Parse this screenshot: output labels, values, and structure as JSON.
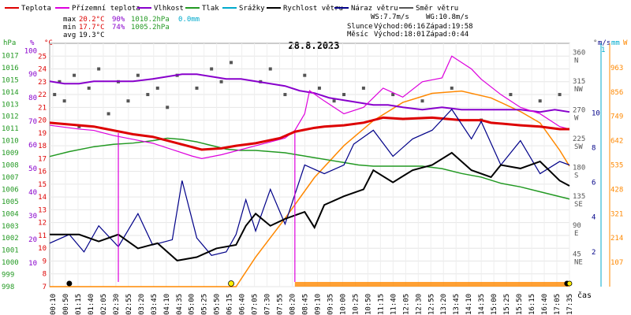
{
  "legend": [
    {
      "label": "Teplota",
      "color": "#dd0000"
    },
    {
      "label": "Přízemní teplota",
      "color": "#dd00dd"
    },
    {
      "label": "Vlhkost",
      "color": "#8800cc"
    },
    {
      "label": "Tlak",
      "color": "#229922"
    },
    {
      "label": "Srážky",
      "color": "#00aacc"
    },
    {
      "label": "Rychlost větru",
      "color": "#000000"
    },
    {
      "label": "Náraz větru",
      "color": "#000088"
    },
    {
      "label": "Směr větru",
      "color": "#555555"
    }
  ],
  "stats": {
    "max_label": "max",
    "max_temp": "20.2°C",
    "max_hum": "90%",
    "max_press": "1010.2hPa",
    "max_rain": "0.0mm",
    "min_label": "min",
    "min_temp": "17.7°C",
    "min_hum": "74%",
    "min_press": "1005.2hPa",
    "avg_label": "avg",
    "avg_temp": "19.3°C"
  },
  "wind": {
    "ws": "WS:7.7m/s",
    "wg": "WG:10.8m/s"
  },
  "sun": {
    "label": "Slunce",
    "rise": "Východ:06:16",
    "set": "Západ:19:58"
  },
  "moon": {
    "label": "Měsíc",
    "rise": "Východ:18:01",
    "set": "Západ:0:44"
  },
  "title": "28.8.2023",
  "axis_units": {
    "hpa": "hPa",
    "pct": "%",
    "degc": "°C",
    "deg": "°",
    "ms": "m/s",
    "mm": "mm",
    "w": "W",
    "time": "čas"
  },
  "colors": {
    "temp": "#dd0000",
    "ground": "#dd00dd",
    "hum": "#8800cc",
    "press": "#229922",
    "rain": "#00aacc",
    "speed": "#000000",
    "gust": "#000088",
    "dir": "#555555",
    "solar": "#ff8800"
  },
  "chart_data": {
    "type": "line",
    "title": "28.8.2023",
    "x_ticks": [
      "00:10",
      "00:50",
      "01:15",
      "01:40",
      "02:05",
      "02:30",
      "02:55",
      "03:20",
      "03:45",
      "04:10",
      "04:35",
      "05:00",
      "05:25",
      "05:50",
      "06:15",
      "06:40",
      "07:05",
      "07:30",
      "07:55",
      "08:20",
      "08:45",
      "09:10",
      "09:35",
      "10:00",
      "10:25",
      "10:50",
      "11:15",
      "11:40",
      "12:05",
      "12:30",
      "12:55",
      "13:20",
      "13:45",
      "14:10",
      "14:35",
      "15:00",
      "15:25",
      "15:50",
      "16:15",
      "16:40",
      "17:05",
      "17:35"
    ],
    "y_axes": {
      "pressure_hpa": {
        "range": [
          998,
          1018
        ],
        "ticks": [
          "998",
          "999",
          "1000",
          "1001",
          "1002",
          "1003",
          "1004",
          "1005",
          "1006",
          "1007",
          "1008",
          "1009",
          "1010",
          "1011",
          "1012",
          "1013",
          "1014",
          "1015",
          "1016",
          "1017"
        ]
      },
      "humidity_pct": {
        "range": [
          0,
          100
        ],
        "ticks": [
          "10",
          "20",
          "30",
          "40",
          "50",
          "60",
          "70",
          "80",
          "90",
          "100"
        ]
      },
      "temperature_c": {
        "range": [
          7,
          26
        ],
        "ticks": [
          "7",
          "8",
          "9",
          "10",
          "11",
          "12",
          "13",
          "14",
          "15",
          "16",
          "17",
          "18",
          "19",
          "20",
          "21",
          "22",
          "23",
          "24",
          "25"
        ]
      },
      "direction_deg": {
        "ticks": [
          [
            "360",
            "N"
          ],
          [
            "315",
            "NW"
          ],
          [
            "270",
            "W"
          ],
          [
            "225",
            "SW"
          ],
          [
            "180",
            "S"
          ],
          [
            "135",
            "SE"
          ],
          [
            "90",
            "E"
          ],
          [
            "45",
            "NE"
          ]
        ]
      },
      "wind_ms": {
        "range": [
          0,
          14
        ],
        "ticks": [
          "2",
          "4",
          "6",
          "8",
          "10"
        ]
      },
      "rain_mm": {
        "ticks": [
          "1"
        ]
      },
      "solar_w": {
        "range": [
          0,
          1070
        ],
        "ticks": [
          "107",
          "214",
          "321",
          "428",
          "535",
          "642",
          "749",
          "856",
          "963"
        ]
      }
    },
    "series": [
      {
        "name": "Teplota",
        "unit": "°C",
        "values": [
          [
            0,
            19.8
          ],
          [
            60,
            19.6
          ],
          [
            90,
            19.5
          ],
          [
            130,
            19.2
          ],
          [
            170,
            18.9
          ],
          [
            210,
            18.7
          ],
          [
            250,
            18.3
          ],
          [
            290,
            17.9
          ],
          [
            310,
            17.7
          ],
          [
            350,
            17.8
          ],
          [
            380,
            18.0
          ],
          [
            420,
            18.2
          ],
          [
            470,
            18.6
          ],
          [
            500,
            19.1
          ],
          [
            540,
            19.4
          ],
          [
            560,
            19.5
          ],
          [
            600,
            19.6
          ],
          [
            640,
            19.8
          ],
          [
            680,
            20.2
          ],
          [
            720,
            20.1
          ],
          [
            780,
            20.2
          ],
          [
            840,
            20.0
          ],
          [
            880,
            20.0
          ],
          [
            900,
            19.8
          ],
          [
            960,
            19.6
          ],
          [
            1000,
            19.5
          ],
          [
            1040,
            19.3
          ],
          [
            1060,
            19.3
          ]
        ]
      },
      {
        "name": "Přízemní teplota",
        "unit": "°C",
        "values": [
          [
            0,
            19.6
          ],
          [
            60,
            19.3
          ],
          [
            90,
            19.2
          ],
          [
            130,
            18.8
          ],
          [
            170,
            18.5
          ],
          [
            210,
            18.2
          ],
          [
            250,
            17.7
          ],
          [
            290,
            17.2
          ],
          [
            310,
            17.0
          ],
          [
            350,
            17.3
          ],
          [
            380,
            17.6
          ],
          [
            420,
            18.0
          ],
          [
            480,
            18.6
          ],
          [
            500,
            19.2
          ],
          [
            520,
            20.5
          ],
          [
            530,
            22.3
          ],
          [
            560,
            21.5
          ],
          [
            600,
            20.5
          ],
          [
            640,
            21.0
          ],
          [
            680,
            22.5
          ],
          [
            720,
            21.8
          ],
          [
            760,
            23.0
          ],
          [
            800,
            23.3
          ],
          [
            820,
            25.0
          ],
          [
            860,
            24.0
          ],
          [
            880,
            23.2
          ],
          [
            920,
            22.0
          ],
          [
            960,
            21.0
          ],
          [
            1000,
            20.5
          ],
          [
            1040,
            19.5
          ],
          [
            1060,
            19.3
          ]
        ]
      },
      {
        "name": "Vlhkost",
        "unit": "%",
        "values": [
          [
            0,
            87
          ],
          [
            30,
            86
          ],
          [
            60,
            86
          ],
          [
            90,
            87
          ],
          [
            130,
            87
          ],
          [
            170,
            87
          ],
          [
            210,
            88
          ],
          [
            240,
            89
          ],
          [
            270,
            90
          ],
          [
            300,
            90
          ],
          [
            330,
            89
          ],
          [
            360,
            88
          ],
          [
            390,
            88
          ],
          [
            420,
            87
          ],
          [
            450,
            86
          ],
          [
            480,
            85
          ],
          [
            510,
            83
          ],
          [
            540,
            82
          ],
          [
            570,
            80
          ],
          [
            600,
            79
          ],
          [
            630,
            78
          ],
          [
            660,
            77
          ],
          [
            690,
            77
          ],
          [
            720,
            76
          ],
          [
            760,
            75
          ],
          [
            800,
            76
          ],
          [
            840,
            75
          ],
          [
            880,
            75
          ],
          [
            920,
            75
          ],
          [
            960,
            75
          ],
          [
            1000,
            74
          ],
          [
            1030,
            75
          ],
          [
            1060,
            74
          ]
        ]
      },
      {
        "name": "Tlak",
        "unit": "hPa",
        "values": [
          [
            0,
            1008.7
          ],
          [
            40,
            1009.1
          ],
          [
            90,
            1009.5
          ],
          [
            130,
            1009.7
          ],
          [
            170,
            1009.8
          ],
          [
            210,
            1010.0
          ],
          [
            240,
            1010.2
          ],
          [
            270,
            1010.1
          ],
          [
            300,
            1009.9
          ],
          [
            330,
            1009.6
          ],
          [
            360,
            1009.3
          ],
          [
            390,
            1009.2
          ],
          [
            420,
            1009.2
          ],
          [
            450,
            1009.1
          ],
          [
            480,
            1009.0
          ],
          [
            510,
            1008.8
          ],
          [
            540,
            1008.6
          ],
          [
            570,
            1008.4
          ],
          [
            600,
            1008.2
          ],
          [
            630,
            1008.0
          ],
          [
            660,
            1007.9
          ],
          [
            690,
            1007.9
          ],
          [
            720,
            1007.9
          ],
          [
            760,
            1007.9
          ],
          [
            800,
            1007.7
          ],
          [
            840,
            1007.3
          ],
          [
            880,
            1007.0
          ],
          [
            920,
            1006.5
          ],
          [
            960,
            1006.2
          ],
          [
            1000,
            1005.8
          ],
          [
            1030,
            1005.5
          ],
          [
            1060,
            1005.2
          ]
        ]
      },
      {
        "name": "Rychlost větru",
        "unit": "m/s",
        "values": [
          [
            0,
            3.0
          ],
          [
            60,
            3.0
          ],
          [
            100,
            2.6
          ],
          [
            140,
            3.0
          ],
          [
            180,
            2.2
          ],
          [
            220,
            2.5
          ],
          [
            260,
            1.5
          ],
          [
            300,
            1.7
          ],
          [
            340,
            2.2
          ],
          [
            380,
            2.4
          ],
          [
            400,
            3.5
          ],
          [
            420,
            4.2
          ],
          [
            450,
            3.5
          ],
          [
            480,
            3.9
          ],
          [
            520,
            4.3
          ],
          [
            540,
            3.4
          ],
          [
            560,
            4.7
          ],
          [
            600,
            5.2
          ],
          [
            640,
            5.6
          ],
          [
            660,
            6.7
          ],
          [
            700,
            6.0
          ],
          [
            740,
            6.7
          ],
          [
            780,
            7.0
          ],
          [
            820,
            7.7
          ],
          [
            860,
            6.7
          ],
          [
            900,
            6.3
          ],
          [
            920,
            7.0
          ],
          [
            960,
            6.8
          ],
          [
            1000,
            7.2
          ],
          [
            1040,
            6.1
          ],
          [
            1060,
            5.8
          ]
        ]
      },
      {
        "name": "Náraz větru",
        "unit": "m/s",
        "values": [
          [
            0,
            2.5
          ],
          [
            40,
            3.0
          ],
          [
            70,
            2.0
          ],
          [
            100,
            3.5
          ],
          [
            140,
            2.3
          ],
          [
            180,
            4.2
          ],
          [
            210,
            2.4
          ],
          [
            250,
            2.7
          ],
          [
            270,
            6.1
          ],
          [
            300,
            2.8
          ],
          [
            330,
            1.8
          ],
          [
            360,
            2.0
          ],
          [
            380,
            3.0
          ],
          [
            400,
            5.0
          ],
          [
            420,
            3.2
          ],
          [
            450,
            5.6
          ],
          [
            480,
            3.6
          ],
          [
            520,
            7.0
          ],
          [
            560,
            6.5
          ],
          [
            600,
            7.0
          ],
          [
            620,
            8.2
          ],
          [
            660,
            9.0
          ],
          [
            700,
            7.5
          ],
          [
            740,
            8.5
          ],
          [
            780,
            9.0
          ],
          [
            820,
            10.2
          ],
          [
            860,
            8.5
          ],
          [
            880,
            9.5
          ],
          [
            920,
            7.0
          ],
          [
            960,
            8.4
          ],
          [
            1000,
            6.5
          ],
          [
            1040,
            7.2
          ],
          [
            1060,
            7.0
          ]
        ]
      },
      {
        "name": "Solar",
        "unit": "W",
        "values": [
          [
            0,
            0
          ],
          [
            380,
            0
          ],
          [
            420,
            130
          ],
          [
            480,
            300
          ],
          [
            540,
            480
          ],
          [
            600,
            620
          ],
          [
            660,
            730
          ],
          [
            720,
            810
          ],
          [
            780,
            850
          ],
          [
            840,
            860
          ],
          [
            900,
            830
          ],
          [
            960,
            770
          ],
          [
            1000,
            720
          ],
          [
            1040,
            600
          ],
          [
            1060,
            530
          ]
        ]
      },
      {
        "name": "Směr větru",
        "unit": "°",
        "values": [
          [
            10,
            300
          ],
          [
            20,
            320
          ],
          [
            30,
            290
          ],
          [
            50,
            330
          ],
          [
            60,
            250
          ],
          [
            80,
            310
          ],
          [
            100,
            340
          ],
          [
            120,
            270
          ],
          [
            140,
            320
          ],
          [
            160,
            290
          ],
          [
            180,
            330
          ],
          [
            200,
            300
          ],
          [
            220,
            310
          ],
          [
            240,
            280
          ],
          [
            260,
            330
          ],
          [
            300,
            310
          ],
          [
            330,
            340
          ],
          [
            350,
            320
          ],
          [
            370,
            350
          ],
          [
            430,
            320
          ],
          [
            450,
            340
          ],
          [
            480,
            300
          ],
          [
            520,
            330
          ],
          [
            550,
            310
          ],
          [
            580,
            290
          ],
          [
            600,
            300
          ],
          [
            640,
            310
          ],
          [
            700,
            300
          ],
          [
            760,
            290
          ],
          [
            820,
            310
          ],
          [
            880,
            260
          ],
          [
            940,
            300
          ],
          [
            1000,
            290
          ],
          [
            1040,
            300
          ]
        ]
      }
    ]
  }
}
